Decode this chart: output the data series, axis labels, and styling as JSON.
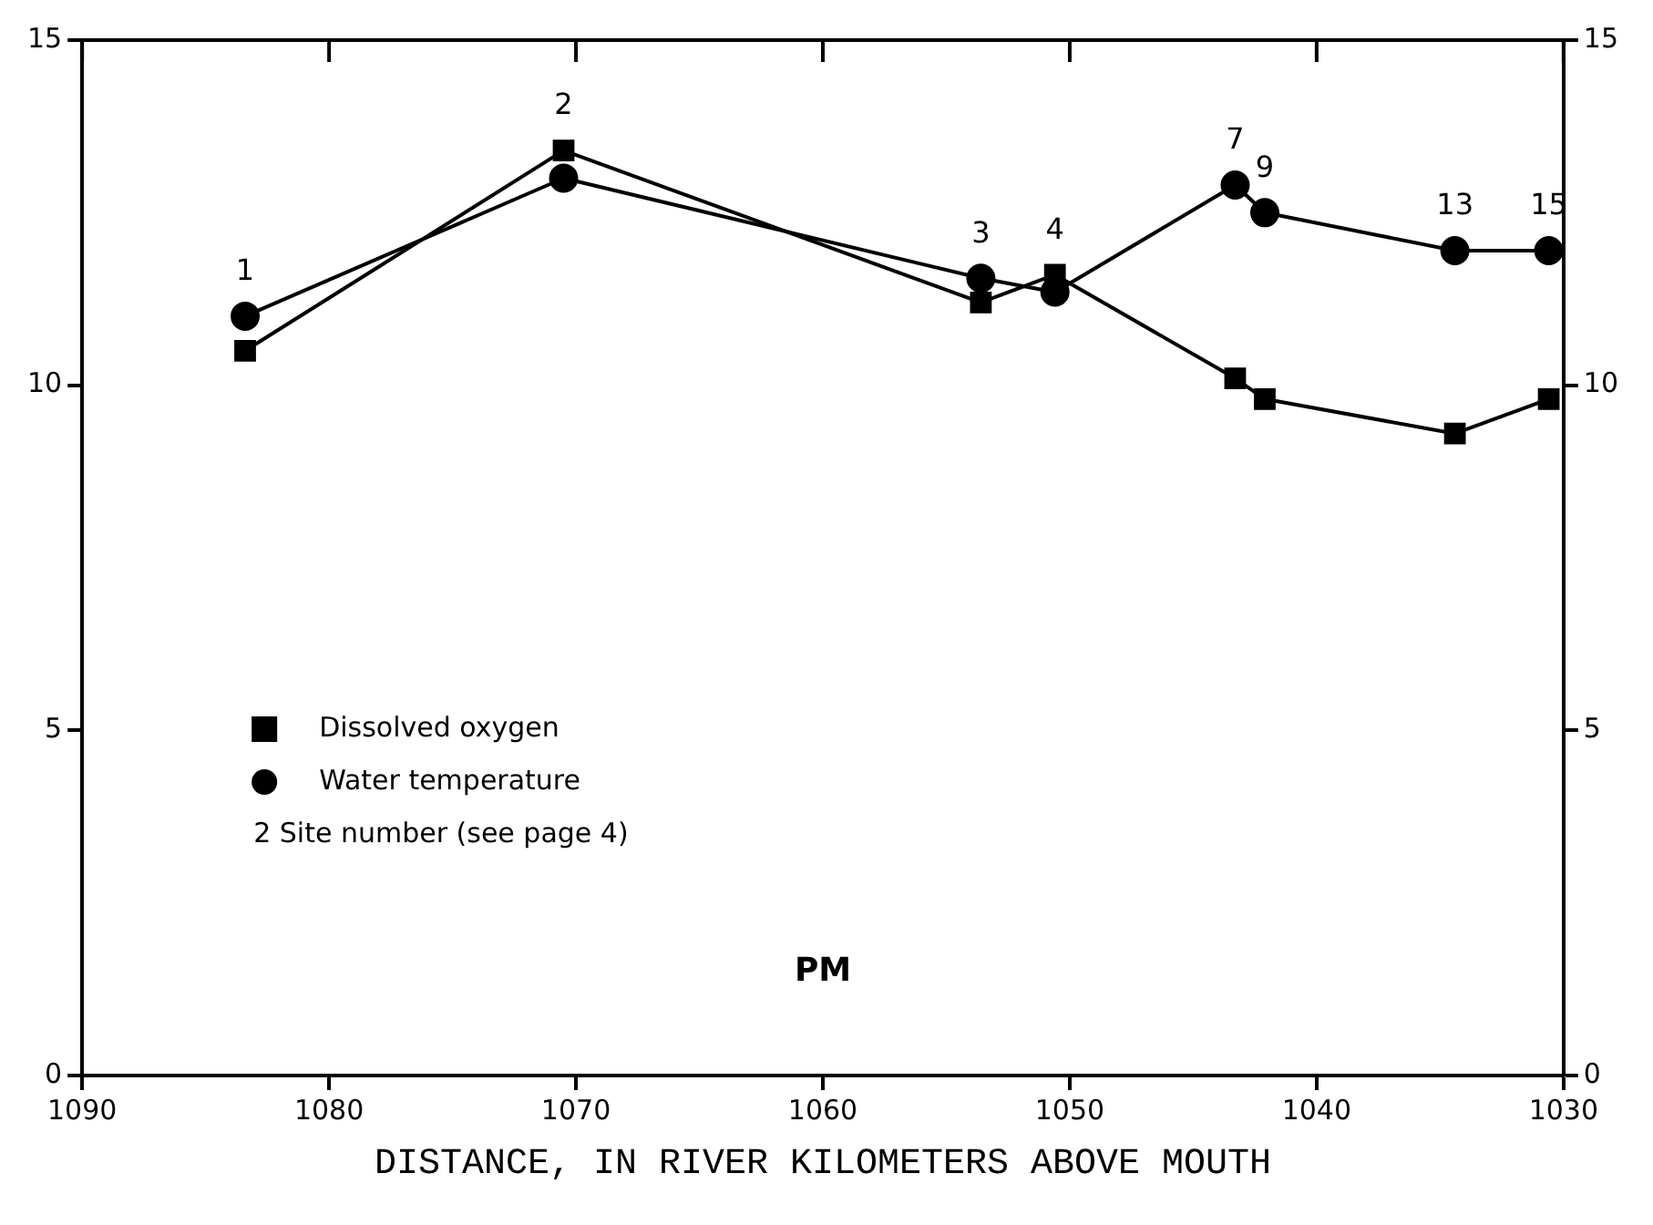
{
  "chart_data": {
    "type": "line",
    "xlabel": "DISTANCE, IN RIVER KILOMETERS ABOVE MOUTH",
    "xlim": [
      1090,
      1030
    ],
    "xticks": [
      1090,
      1080,
      1070,
      1060,
      1050,
      1040,
      1030
    ],
    "ylim": [
      0,
      15
    ],
    "yticks": [
      0,
      5,
      10,
      15
    ],
    "y2lim": [
      0,
      15
    ],
    "y2ticks": [
      0,
      5,
      10,
      15
    ],
    "x": [
      1083.4,
      1070.5,
      1053.6,
      1050.6,
      1043.3,
      1042.1,
      1034.4,
      1030.6
    ],
    "series": [
      {
        "name": "Dissolved oxygen",
        "color": "#000000",
        "marker": "square",
        "values": [
          10.5,
          13.4,
          11.2,
          11.6,
          10.1,
          9.8,
          9.3,
          9.8
        ]
      },
      {
        "name": "Water temperature",
        "color": "#000000",
        "marker": "circle",
        "values": [
          11.0,
          13.0,
          11.55,
          11.35,
          12.9,
          12.5,
          11.95,
          11.95
        ]
      }
    ],
    "annotations": [
      "2 Site number (see page 4)",
      "PM",
      {
        "text": "1",
        "x": 1083.4,
        "y": 11.0
      },
      {
        "text": "2",
        "x": 1070.5,
        "y": 13.4
      },
      {
        "text": "3",
        "x": 1053.6,
        "y": 11.55
      },
      {
        "text": "4",
        "x": 1050.6,
        "y": 11.6
      },
      {
        "text": "7",
        "x": 1043.3,
        "y": 12.9
      },
      {
        "text": "9",
        "x": 1042.1,
        "y": 12.5
      },
      {
        "text": "13",
        "x": 1034.4,
        "y": 11.95
      },
      {
        "text": "15",
        "x": 1030.6,
        "y": 11.95
      }
    ],
    "legend": "bottom left",
    "grid": false,
    "line_style": "solid"
  }
}
